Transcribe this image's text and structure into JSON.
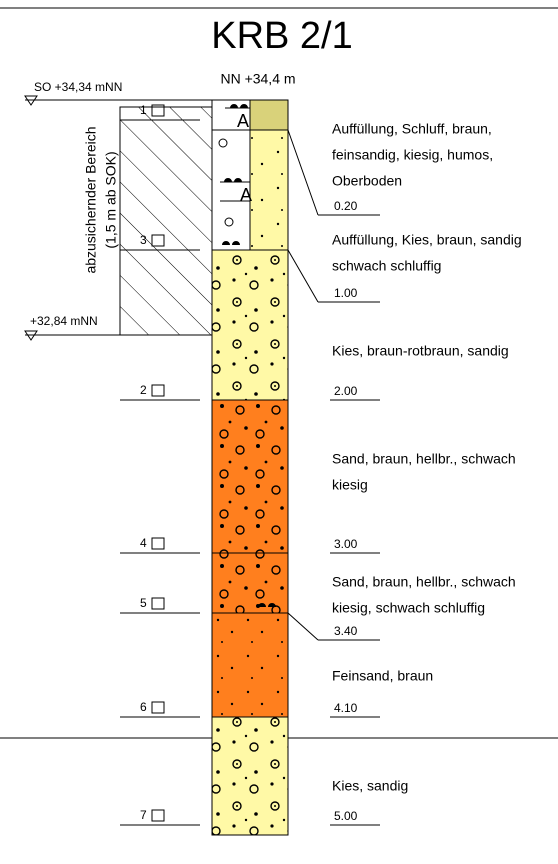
{
  "title": "KRB 2/1",
  "ground_level": "NN +34,4 m",
  "levels": [
    "SO +34,34 mNN",
    "+32,84 mNN"
  ],
  "zone_label": [
    "abzusichernder Bereich",
    "(1,5 m ab SOK)"
  ],
  "markers": [
    "A",
    "A"
  ],
  "samples": [
    "1",
    "3",
    "2",
    "4",
    "5",
    "6",
    "7"
  ],
  "depths": [
    "0.20",
    "1.00",
    "2.00",
    "3.00",
    "3.40",
    "4.10",
    "5.00"
  ],
  "layers": [
    [
      "Auffüllung, Schluff, braun,",
      "feinsandig, kiesig, humos,",
      "Oberboden"
    ],
    [
      "Auffüllung, Kies, braun, sandig",
      "schwach schluffig"
    ],
    [
      "Kies, braun-rotbraun, sandig"
    ],
    [
      "Sand, braun, hellbr., schwach",
      "kiesig"
    ],
    [
      "Sand, braun, hellbr., schwach",
      "kiesig, schwach schluffig"
    ],
    [
      "Feinsand, braun"
    ],
    [
      "Kies, sandig"
    ]
  ]
}
